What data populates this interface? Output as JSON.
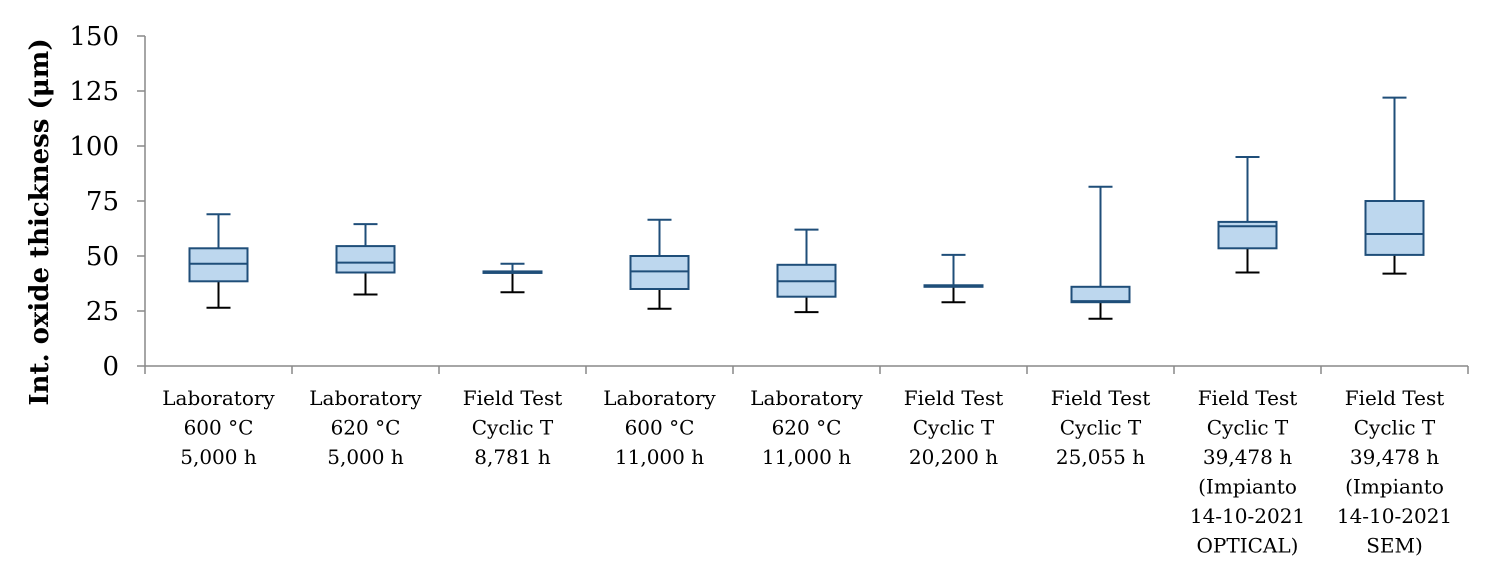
{
  "chart_data": {
    "type": "boxplot",
    "ylabel": "Int. oxide thickness (μm)",
    "ylim": [
      0,
      150
    ],
    "yticks": [
      0,
      25,
      50,
      75,
      100,
      125,
      150
    ],
    "grid": false,
    "colors": {
      "box_fill": "#bdd7ee",
      "box_stroke": "#1f4e79",
      "axis": "#888888"
    },
    "categories": [
      [
        "Laboratory",
        "600 °C",
        "5,000 h"
      ],
      [
        "Laboratory",
        "620 °C",
        "5,000 h"
      ],
      [
        "Field Test",
        "Cyclic T",
        "8,781 h"
      ],
      [
        "Laboratory",
        "600 °C",
        "11,000 h"
      ],
      [
        "Laboratory",
        "620 °C",
        "11,000 h"
      ],
      [
        "Field Test",
        "Cyclic T",
        "20,200 h"
      ],
      [
        "Field Test",
        "Cyclic T",
        "25,055 h"
      ],
      [
        "Field Test",
        "Cyclic T",
        "39,478 h",
        "(Impianto",
        "14-10-2021",
        "OPTICAL)"
      ],
      [
        "Field Test",
        "Cyclic T",
        "39,478 h",
        "(Impianto",
        "14-10-2021",
        "SEM)"
      ]
    ],
    "boxes": [
      {
        "min": 26.5,
        "q1": 38.5,
        "median": 46.5,
        "q3": 53.5,
        "max": 69
      },
      {
        "min": 32.5,
        "q1": 42.5,
        "median": 47,
        "q3": 54.5,
        "max": 64.5
      },
      {
        "min": 33.5,
        "q1": 42.3,
        "median": 42.7,
        "q3": 43,
        "max": 46.5
      },
      {
        "min": 26,
        "q1": 35,
        "median": 43,
        "q3": 50,
        "max": 66.5
      },
      {
        "min": 24.5,
        "q1": 31.5,
        "median": 38.5,
        "q3": 46,
        "max": 62
      },
      {
        "min": 29,
        "q1": 36,
        "median": 36.3,
        "q3": 36.7,
        "max": 50.5
      },
      {
        "min": 21.5,
        "q1": 29,
        "median": 29.5,
        "q3": 36,
        "max": 81.5
      },
      {
        "min": 42.5,
        "q1": 53.5,
        "median": 63.5,
        "q3": 65.5,
        "max": 95
      },
      {
        "min": 42,
        "q1": 50.5,
        "median": 60,
        "q3": 75,
        "max": 122
      }
    ]
  }
}
